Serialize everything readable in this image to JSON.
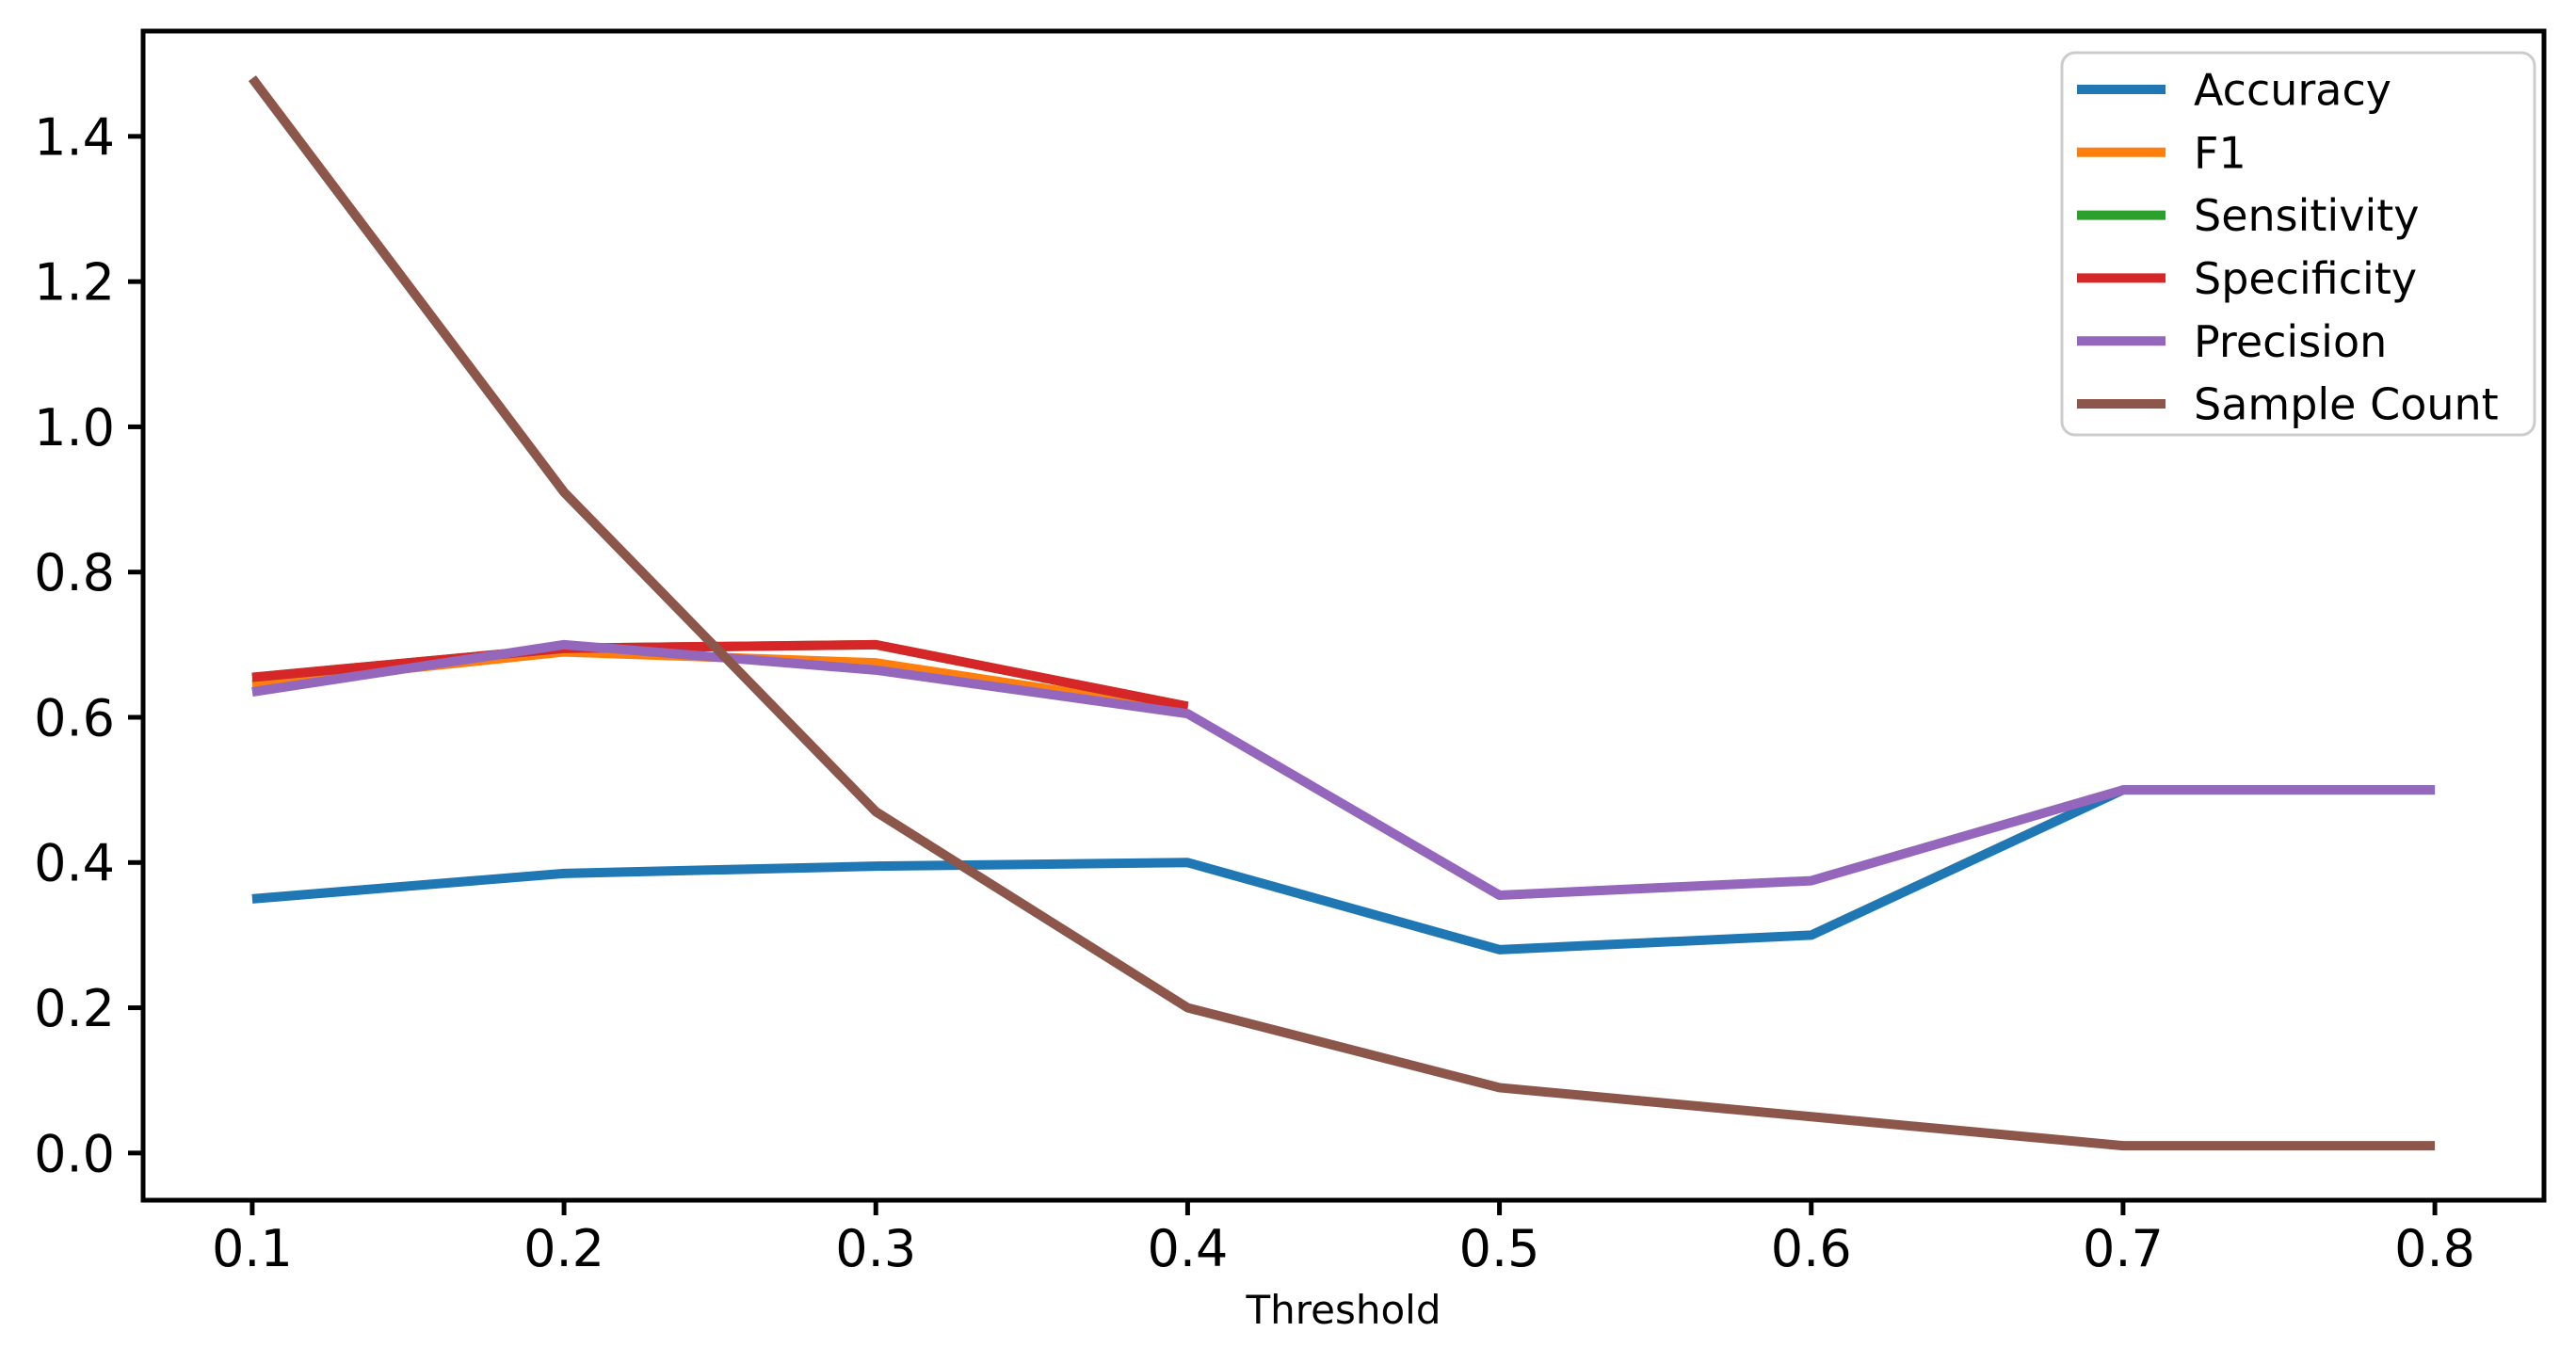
{
  "chart_data": {
    "type": "line",
    "title": "",
    "xlabel": "Threshold",
    "ylabel": "",
    "x": [
      0.1,
      0.2,
      0.3,
      0.4,
      0.5,
      0.6,
      0.7,
      0.8
    ],
    "xtick_labels": [
      "0.1",
      "0.2",
      "0.3",
      "0.4",
      "0.5",
      "0.6",
      "0.7",
      "0.8"
    ],
    "ytick_values": [
      0.0,
      0.2,
      0.4,
      0.6,
      0.8,
      1.0,
      1.2,
      1.4
    ],
    "ytick_labels": [
      "0.0",
      "0.2",
      "0.4",
      "0.6",
      "0.8",
      "1.0",
      "1.2",
      "1.4"
    ],
    "xlim": [
      0.065,
      0.835
    ],
    "ylim": [
      -0.065,
      1.545
    ],
    "grid": false,
    "legend_position": "upper right",
    "series": [
      {
        "name": "Accuracy",
        "color": "#1f77b4",
        "values": [
          0.35,
          0.385,
          0.395,
          0.4,
          0.28,
          0.3,
          0.5,
          0.5
        ]
      },
      {
        "name": "F1",
        "color": "#ff7f0e",
        "values": [
          0.645,
          0.69,
          0.675,
          0.61,
          null,
          null,
          null,
          null
        ]
      },
      {
        "name": "Sensitivity",
        "color": "#2ca02c",
        "values": [
          0.655,
          0.695,
          0.7,
          0.615,
          null,
          null,
          null,
          null
        ]
      },
      {
        "name": "Specificity",
        "color": "#d62728",
        "values": [
          0.655,
          0.695,
          0.7,
          0.615,
          null,
          null,
          null,
          null
        ]
      },
      {
        "name": "Precision",
        "color": "#9467bd",
        "values": [
          0.635,
          0.7,
          0.665,
          0.605,
          0.355,
          0.375,
          0.5,
          0.5
        ]
      },
      {
        "name": "Sample Count",
        "color": "#8c564b",
        "values": [
          1.48,
          0.91,
          0.47,
          0.2,
          0.09,
          0.05,
          0.01,
          0.01
        ]
      }
    ],
    "axis_color": "#000000",
    "legend_border_color": "#cccccc",
    "background_color": "#ffffff"
  }
}
